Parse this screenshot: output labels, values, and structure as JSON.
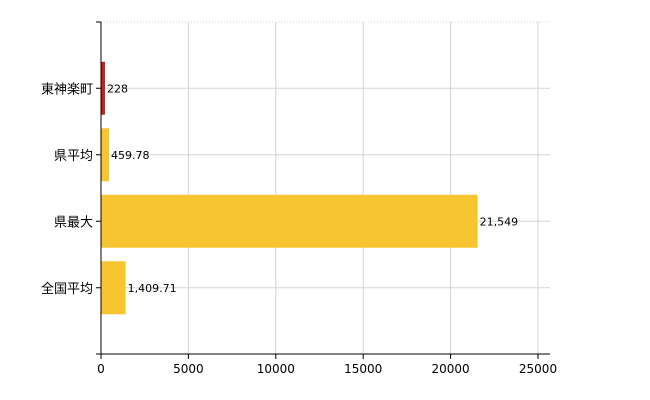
{
  "chart_data": {
    "type": "bar",
    "orientation": "horizontal",
    "categories": [
      "東神楽町",
      "県平均",
      "県最大",
      "全国平均"
    ],
    "values": [
      228,
      459.78,
      21549,
      1409.71
    ],
    "value_labels": [
      "228",
      "459.78",
      "21,549",
      "1,409.71"
    ],
    "bar_colors": [
      "#c0251b",
      "#f7c52f",
      "#f7c52f",
      "#f7c52f"
    ],
    "xlim": [
      0,
      25000
    ],
    "xticks": [
      0,
      5000,
      10000,
      15000,
      20000,
      25000
    ],
    "xtick_labels": [
      "0",
      "5000",
      "10000",
      "15000",
      "20000",
      "25000"
    ],
    "grid": true,
    "grid_color": "#d3d3d3",
    "title": "",
    "xlabel": "",
    "ylabel": ""
  }
}
